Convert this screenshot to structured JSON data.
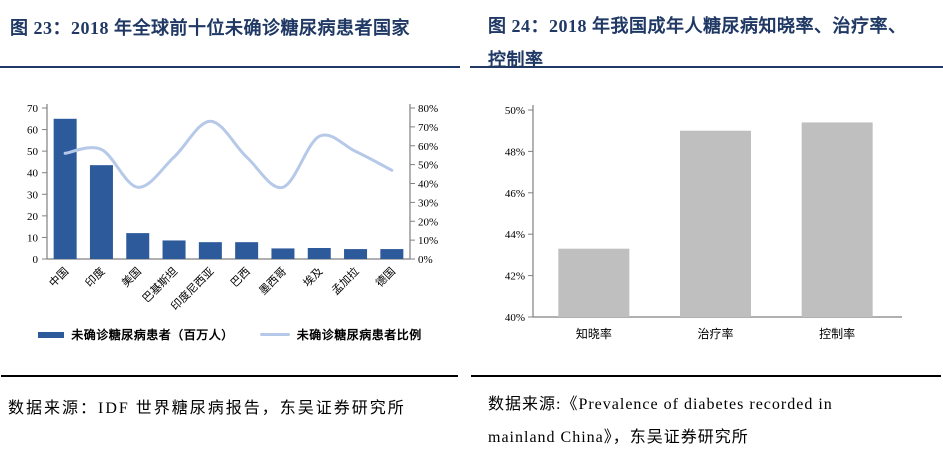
{
  "left_panel": {
    "title": "图 23：2018 年全球前十位未确诊糖尿病患者国家",
    "source": "数据来源：IDF 世界糖尿病报告，东吴证券研究所"
  },
  "right_panel": {
    "title_lines": [
      "图 24：2018 年我国成年人糖尿病知晓率、治疗率、",
      "控制率"
    ],
    "source_lines": [
      "数据来源:《Prevalence of diabetes recorded in",
      "mainland China》，东吴证券研究所"
    ]
  },
  "colors": {
    "title_navy": "#1F3864",
    "bar_blue": "#2D5A9B",
    "line_light_blue": "#B6C9E8",
    "bar_gray": "#BFBFBF",
    "axis_gray": "#808080"
  },
  "chart_data": [
    {
      "type": "bar",
      "subtype": "combo-bar-line",
      "title": "2018 年全球前十位未确诊糖尿病患者国家",
      "categories": [
        "中国",
        "印度",
        "美国",
        "巴基斯坦",
        "印度尼西亚",
        "巴西",
        "墨西哥",
        "埃及",
        "孟加拉",
        "德国"
      ],
      "series": [
        {
          "name": "未确诊糖尿病患者（百万人）",
          "type": "bar",
          "axis": "left",
          "values": [
            65,
            43.5,
            12,
            8.6,
            7.8,
            7.8,
            4.9,
            5.1,
            4.6,
            4.6
          ]
        },
        {
          "name": "未确诊糖尿病患者比例",
          "type": "line",
          "axis": "right",
          "values": [
            56,
            58,
            38,
            54,
            73,
            54,
            38,
            65,
            57,
            47
          ]
        }
      ],
      "left_axis": {
        "min": 0,
        "max": 70,
        "step": 10,
        "ticks": [
          "0",
          "10",
          "20",
          "30",
          "40",
          "50",
          "60",
          "70"
        ]
      },
      "right_axis": {
        "min": 0,
        "max": 80,
        "step": 10,
        "ticks": [
          "0%",
          "10%",
          "20%",
          "30%",
          "40%",
          "50%",
          "60%",
          "70%",
          "80%"
        ]
      },
      "grid": false,
      "legend_position": "bottom"
    },
    {
      "type": "bar",
      "title": "2018 年我国成年人糖尿病知晓率、治疗率、控制率",
      "categories": [
        "知晓率",
        "治疗率",
        "控制率"
      ],
      "values": [
        43.3,
        49.0,
        49.4
      ],
      "xlabel": "",
      "ylabel": "",
      "y_axis": {
        "min": 40,
        "max": 50,
        "step": 2,
        "ticks": [
          "40%",
          "42%",
          "44%",
          "46%",
          "48%",
          "50%"
        ]
      },
      "grid": false,
      "legend_position": "none"
    }
  ]
}
